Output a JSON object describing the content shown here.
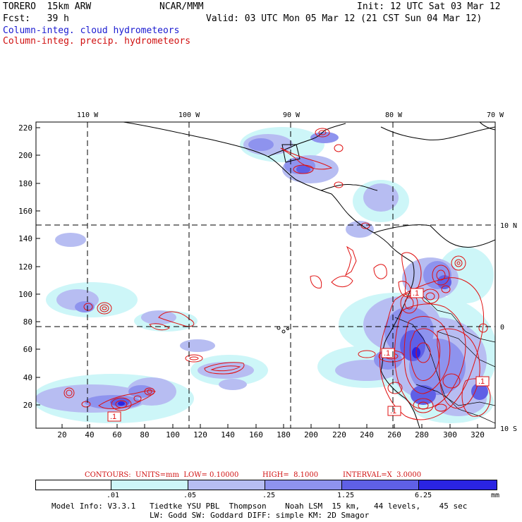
{
  "header": {
    "model_name": "TORERO  15km ARW",
    "org": "NCAR/MMM",
    "init": "Init: 12 UTC Sat 03 Mar 12",
    "fcst": "Fcst:   39 h",
    "valid": "Valid: 03 UTC Mon 05 Mar 12 (21 CST Sun 04 Mar 12)",
    "field_cloud": "Column-integ. cloud hydrometeors",
    "field_precip": "Column-integ. precip. hydrometeors"
  },
  "colors": {
    "cloud_text": "#1a1ad0",
    "precip_text": "#d01010",
    "shade_1": "#cdf6f8",
    "shade_2": "#b7bdf2",
    "shade_3": "#8e93ee",
    "shade_4": "#5f60e6",
    "shade_5": "#2a24e3"
  },
  "axes": {
    "top_lon_labels": [
      "110 W",
      "100 W",
      "90 W",
      "80 W",
      "70 W"
    ],
    "right_lat_labels": [
      "10 N",
      "0",
      "10 S"
    ],
    "y_ticks": [
      "220",
      "200",
      "180",
      "160",
      "140",
      "120",
      "100",
      "80",
      "60",
      "40",
      "20"
    ],
    "x_ticks": [
      "20",
      "40",
      "60",
      "80",
      "100",
      "120",
      "140",
      "160",
      "180",
      "200",
      "220",
      "240",
      "260",
      "280",
      "300",
      "320"
    ]
  },
  "contour_labels": [
    ".1",
    ".1",
    ".1",
    ".1",
    ".1"
  ],
  "contour_info": {
    "contours": "CONTOURS:  UNITS=mm  LOW= 0.10000",
    "high": "HIGH=  8.1000",
    "interval": "INTERVAL=X  3.0000"
  },
  "legend": {
    "ticks": [
      ".01",
      ".05",
      ".25",
      "1.25",
      "6.25"
    ],
    "unit": "mm"
  },
  "footer": {
    "line1": "Model Info: V3.3.1   Tiedtke YSU PBL  Thompson    Noah LSM  15 km,   44 levels,    45 sec",
    "line2": "LW: Godd SW: Goddard DIFF: simple KM: 2D Smagor"
  }
}
